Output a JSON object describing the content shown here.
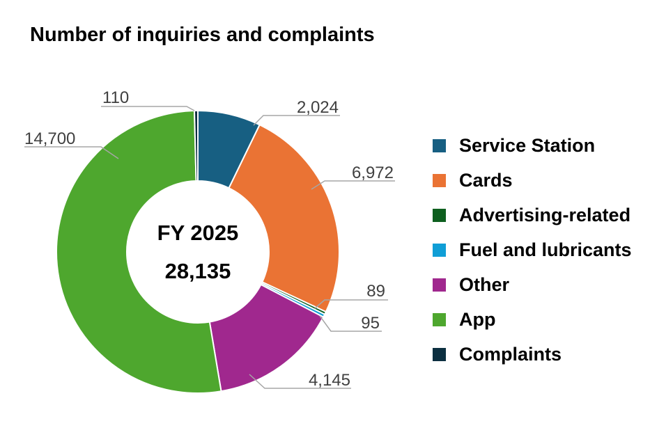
{
  "title": "Number of inquiries and complaints",
  "chart_data": {
    "type": "pie",
    "title": "Number of inquiries and complaints",
    "center_label": "FY 2025",
    "center_total": "28,135",
    "slices": [
      {
        "name": "Service Station",
        "value": 2024,
        "label": "2,024",
        "color": "#175f82"
      },
      {
        "name": "Cards",
        "value": 6972,
        "label": "6,972",
        "color": "#ea7334"
      },
      {
        "name": "Advertising-related",
        "value": 89,
        "label": "89",
        "color": "#0e5f1f"
      },
      {
        "name": "Fuel and lubricants",
        "value": 95,
        "label": "95",
        "color": "#109ed6"
      },
      {
        "name": "Other",
        "value": 4145,
        "label": "4,145",
        "color": "#a0288e"
      },
      {
        "name": "App",
        "value": 14700,
        "label": "14,700",
        "color": "#4ea72e"
      },
      {
        "name": "Complaints",
        "value": 110,
        "label": "110",
        "color": "#0c2f40"
      }
    ],
    "legend_position": "right"
  }
}
